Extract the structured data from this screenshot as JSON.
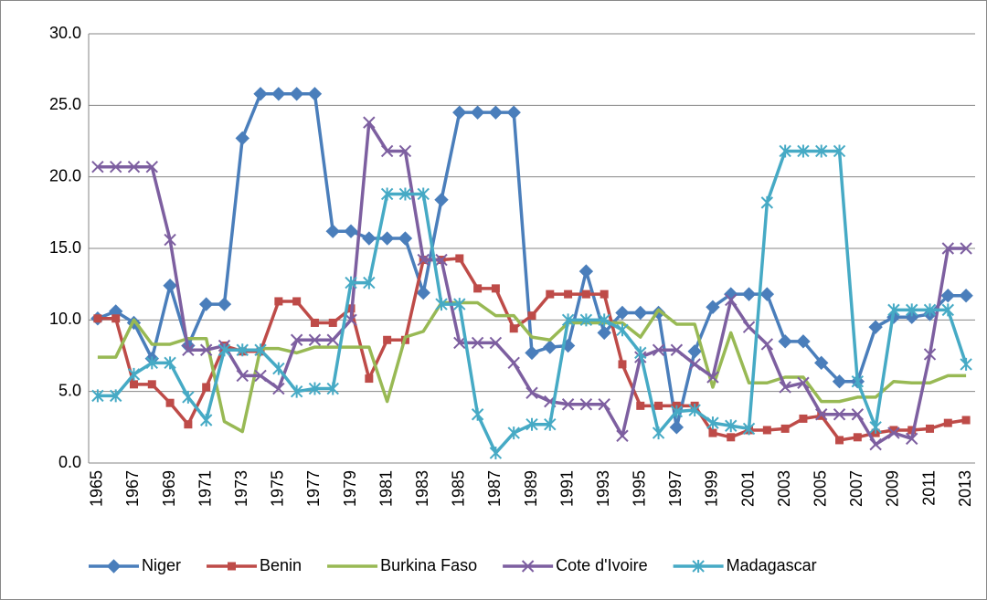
{
  "chart_data": {
    "type": "line",
    "categories": [
      1965,
      null,
      1967,
      null,
      1969,
      null,
      1971,
      null,
      1973,
      null,
      1975,
      null,
      1977,
      null,
      1979,
      null,
      1981,
      null,
      1983,
      null,
      1985,
      null,
      1987,
      null,
      1989,
      null,
      1991,
      null,
      1993,
      null,
      1995,
      null,
      1997,
      null,
      1999,
      null,
      2001,
      null,
      2003,
      null,
      2005,
      null,
      2007,
      null,
      2009,
      null,
      2011,
      null,
      2013
    ],
    "series": [
      {
        "name": "Niger",
        "color": "#4a7ebb",
        "marker": "diamond",
        "values": [
          10.1,
          10.6,
          9.8,
          7.3,
          12.4,
          8.2,
          11.1,
          11.1,
          22.7,
          25.8,
          25.8,
          25.8,
          25.8,
          16.2,
          16.2,
          15.7,
          15.7,
          15.7,
          11.9,
          18.4,
          24.5,
          24.5,
          24.5,
          24.5,
          7.7,
          8.1,
          8.2,
          13.4,
          9.1,
          10.5,
          10.5,
          10.5,
          2.5,
          7.8,
          10.9,
          11.8,
          11.8,
          11.8,
          8.5,
          8.5,
          7.0,
          5.7,
          5.7,
          9.5,
          10.2,
          10.2,
          10.4,
          11.7,
          11.7
        ]
      },
      {
        "name": "Benin",
        "color": "#be4b48",
        "marker": "square",
        "values": [
          10.1,
          10.1,
          5.5,
          5.5,
          4.2,
          2.7,
          5.3,
          8.2,
          7.8,
          7.8,
          11.3,
          11.3,
          9.8,
          9.8,
          10.8,
          5.9,
          8.6,
          8.6,
          14.2,
          14.2,
          14.3,
          12.2,
          12.2,
          9.4,
          10.3,
          11.8,
          11.8,
          11.8,
          11.8,
          6.9,
          4.0,
          4.0,
          4.0,
          4.0,
          2.1,
          1.8,
          2.3,
          2.3,
          2.4,
          3.1,
          3.3,
          1.6,
          1.8,
          2.1,
          2.3,
          2.3,
          2.4,
          2.8,
          3.0
        ]
      },
      {
        "name": "Burkina Faso",
        "color": "#98b954",
        "marker": "none",
        "values": [
          7.4,
          7.4,
          10.0,
          8.3,
          8.3,
          8.7,
          8.7,
          2.9,
          2.2,
          8.0,
          8.0,
          7.7,
          8.1,
          8.1,
          8.1,
          8.1,
          4.3,
          8.8,
          9.2,
          11.2,
          11.2,
          11.2,
          10.3,
          10.3,
          8.8,
          8.6,
          9.8,
          9.8,
          9.8,
          9.8,
          8.8,
          10.7,
          9.7,
          9.7,
          5.3,
          9.1,
          5.6,
          5.6,
          6.0,
          6.0,
          4.3,
          4.3,
          4.6,
          4.6,
          5.7,
          5.6,
          5.6,
          6.1,
          6.1
        ]
      },
      {
        "name": "Cote d'Ivoire",
        "color": "#7d5fa0",
        "marker": "x",
        "values": [
          20.7,
          20.7,
          20.7,
          20.7,
          15.6,
          7.9,
          7.9,
          8.2,
          6.1,
          6.1,
          5.2,
          8.6,
          8.6,
          8.6,
          10.0,
          23.8,
          21.8,
          21.8,
          14.2,
          14.2,
          8.4,
          8.4,
          8.4,
          7.0,
          4.9,
          4.3,
          4.1,
          4.1,
          4.1,
          1.9,
          7.4,
          7.9,
          7.9,
          6.9,
          6.0,
          11.4,
          9.5,
          8.3,
          5.3,
          5.6,
          3.4,
          3.4,
          3.4,
          1.3,
          2.1,
          1.7,
          7.6,
          15.0,
          15.0
        ]
      },
      {
        "name": "Madagascar",
        "color": "#46aac5",
        "marker": "star",
        "values": [
          4.7,
          4.7,
          6.2,
          7.0,
          7.0,
          4.6,
          3.0,
          7.9,
          7.9,
          7.9,
          6.6,
          5.0,
          5.2,
          5.2,
          12.6,
          12.6,
          18.8,
          18.8,
          18.8,
          11.1,
          11.1,
          3.4,
          0.7,
          2.1,
          2.7,
          2.7,
          10.0,
          10.0,
          10.0,
          9.3,
          7.7,
          2.1,
          3.6,
          3.7,
          2.8,
          2.6,
          2.4,
          18.2,
          21.8,
          21.8,
          21.8,
          21.8,
          5.7,
          2.5,
          10.7,
          10.7,
          10.7,
          10.7,
          6.9
        ]
      }
    ],
    "ylim": [
      0,
      30
    ],
    "yticks": [
      {
        "value": 0,
        "label": "0.0"
      },
      {
        "value": 5,
        "label": "5.0"
      },
      {
        "value": 10,
        "label": "10.0"
      },
      {
        "value": 15,
        "label": "15.0"
      },
      {
        "value": 20,
        "label": "20.0"
      },
      {
        "value": 25,
        "label": "25.0"
      },
      {
        "value": 30,
        "label": "30.0"
      }
    ],
    "grid": true,
    "legend": "bottom"
  }
}
